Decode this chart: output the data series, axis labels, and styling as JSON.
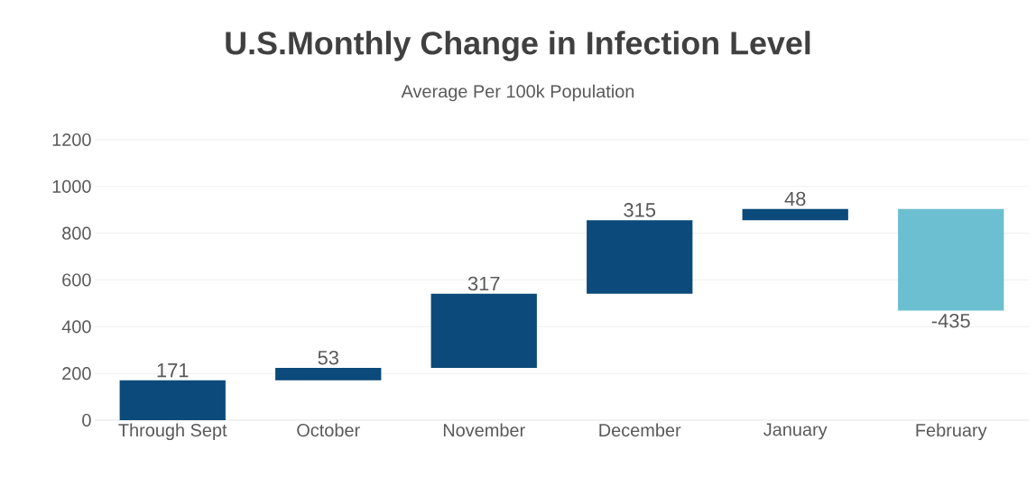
{
  "chart_data": {
    "type": "bar",
    "title": "U.S.Monthly Change in Infection Level",
    "subtitle": "Average Per 100k Population",
    "categories": [
      "Through Sept",
      "October",
      "November",
      "December",
      "January",
      "February"
    ],
    "values": [
      171,
      53,
      317,
      315,
      48,
      -435
    ],
    "base": [
      0,
      171,
      224,
      541,
      856,
      904
    ],
    "colors": [
      "#0b4a7a",
      "#0b4a7a",
      "#0b4a7a",
      "#0b4a7a",
      "#0b4a7a",
      "#6cbfd0"
    ],
    "value_labels": [
      "171",
      "53",
      "317",
      "315",
      "48",
      "-435"
    ],
    "ylim": [
      0,
      1200
    ],
    "yticks": [
      0,
      200,
      400,
      600,
      800,
      1000,
      1200
    ],
    "grid": "y"
  }
}
